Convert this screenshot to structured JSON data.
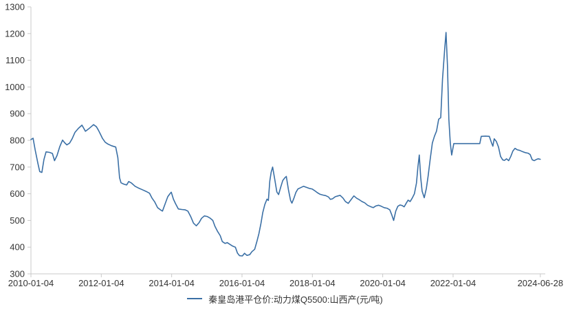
{
  "chart_data": {
    "type": "line",
    "title": "",
    "xlabel": "",
    "ylabel": "",
    "ylim": [
      300,
      1300
    ],
    "xlim": [
      2010.01,
      2024.63
    ],
    "grid": false,
    "legend_position": "bottom-center",
    "background": "#ffffff",
    "axis_color": "#c9c9c9",
    "text_color": "#333333",
    "y_ticks": [
      300,
      400,
      500,
      600,
      700,
      800,
      900,
      1000,
      1100,
      1200,
      1300
    ],
    "x_ticks": [
      {
        "label": "2010-01-04",
        "x": 2010.01
      },
      {
        "label": "2012-01-04",
        "x": 2012.01
      },
      {
        "label": "2014-01-04",
        "x": 2014.01
      },
      {
        "label": "2016-01-04",
        "x": 2016.01
      },
      {
        "label": "2018-01-04",
        "x": 2018.01
      },
      {
        "label": "2020-01-04",
        "x": 2020.01
      },
      {
        "label": "2022-01-04",
        "x": 2022.01
      },
      {
        "label": "2024-06-28",
        "x": 2024.49
      }
    ],
    "series": [
      {
        "name": "秦皇岛港平仓价:动力煤Q5500:山西产(元/吨)",
        "color": "#3a6fa5",
        "points": [
          [
            2010.01,
            803
          ],
          [
            2010.07,
            808
          ],
          [
            2010.13,
            765
          ],
          [
            2010.21,
            713
          ],
          [
            2010.26,
            683
          ],
          [
            2010.32,
            680
          ],
          [
            2010.38,
            728
          ],
          [
            2010.44,
            757
          ],
          [
            2010.54,
            755
          ],
          [
            2010.62,
            751
          ],
          [
            2010.68,
            724
          ],
          [
            2010.75,
            743
          ],
          [
            2010.83,
            777
          ],
          [
            2010.91,
            801
          ],
          [
            2010.97,
            791
          ],
          [
            2011.03,
            783
          ],
          [
            2011.11,
            790
          ],
          [
            2011.18,
            806
          ],
          [
            2011.26,
            830
          ],
          [
            2011.36,
            845
          ],
          [
            2011.46,
            857
          ],
          [
            2011.56,
            834
          ],
          [
            2011.65,
            843
          ],
          [
            2011.73,
            852
          ],
          [
            2011.79,
            859
          ],
          [
            2011.87,
            851
          ],
          [
            2011.93,
            838
          ],
          [
            2011.99,
            822
          ],
          [
            2012.04,
            808
          ],
          [
            2012.12,
            793
          ],
          [
            2012.2,
            786
          ],
          [
            2012.3,
            780
          ],
          [
            2012.42,
            775
          ],
          [
            2012.48,
            735
          ],
          [
            2012.53,
            660
          ],
          [
            2012.57,
            641
          ],
          [
            2012.65,
            636
          ],
          [
            2012.73,
            633
          ],
          [
            2012.79,
            646
          ],
          [
            2012.87,
            640
          ],
          [
            2012.97,
            628
          ],
          [
            2013.06,
            622
          ],
          [
            2013.18,
            615
          ],
          [
            2013.28,
            609
          ],
          [
            2013.38,
            602
          ],
          [
            2013.45,
            584
          ],
          [
            2013.53,
            569
          ],
          [
            2013.61,
            548
          ],
          [
            2013.69,
            540
          ],
          [
            2013.75,
            535
          ],
          [
            2013.83,
            564
          ],
          [
            2013.9,
            589
          ],
          [
            2013.96,
            600
          ],
          [
            2014.0,
            606
          ],
          [
            2014.06,
            580
          ],
          [
            2014.12,
            563
          ],
          [
            2014.2,
            543
          ],
          [
            2014.3,
            541
          ],
          [
            2014.39,
            540
          ],
          [
            2014.47,
            535
          ],
          [
            2014.55,
            515
          ],
          [
            2014.63,
            490
          ],
          [
            2014.71,
            480
          ],
          [
            2014.79,
            492
          ],
          [
            2014.86,
            508
          ],
          [
            2014.94,
            517
          ],
          [
            2015.02,
            515
          ],
          [
            2015.1,
            509
          ],
          [
            2015.18,
            500
          ],
          [
            2015.24,
            478
          ],
          [
            2015.31,
            460
          ],
          [
            2015.39,
            443
          ],
          [
            2015.45,
            421
          ],
          [
            2015.53,
            414
          ],
          [
            2015.59,
            417
          ],
          [
            2015.67,
            410
          ],
          [
            2015.74,
            404
          ],
          [
            2015.82,
            400
          ],
          [
            2015.88,
            378
          ],
          [
            2015.94,
            368
          ],
          [
            2016.02,
            367
          ],
          [
            2016.08,
            377
          ],
          [
            2016.15,
            369
          ],
          [
            2016.23,
            372
          ],
          [
            2016.29,
            383
          ],
          [
            2016.37,
            392
          ],
          [
            2016.43,
            420
          ],
          [
            2016.49,
            450
          ],
          [
            2016.55,
            490
          ],
          [
            2016.6,
            530
          ],
          [
            2016.66,
            560
          ],
          [
            2016.72,
            580
          ],
          [
            2016.76,
            575
          ],
          [
            2016.8,
            648
          ],
          [
            2016.84,
            681
          ],
          [
            2016.88,
            700
          ],
          [
            2016.94,
            654
          ],
          [
            2017.0,
            607
          ],
          [
            2017.05,
            597
          ],
          [
            2017.11,
            625
          ],
          [
            2017.17,
            650
          ],
          [
            2017.23,
            660
          ],
          [
            2017.27,
            665
          ],
          [
            2017.33,
            615
          ],
          [
            2017.39,
            575
          ],
          [
            2017.43,
            565
          ],
          [
            2017.49,
            585
          ],
          [
            2017.54,
            605
          ],
          [
            2017.6,
            618
          ],
          [
            2017.68,
            623
          ],
          [
            2017.76,
            628
          ],
          [
            2017.84,
            624
          ],
          [
            2017.92,
            620
          ],
          [
            2018.0,
            618
          ],
          [
            2018.07,
            612
          ],
          [
            2018.15,
            604
          ],
          [
            2018.23,
            598
          ],
          [
            2018.31,
            595
          ],
          [
            2018.39,
            593
          ],
          [
            2018.47,
            588
          ],
          [
            2018.52,
            579
          ],
          [
            2018.58,
            581
          ],
          [
            2018.66,
            589
          ],
          [
            2018.74,
            592
          ],
          [
            2018.8,
            594
          ],
          [
            2018.88,
            584
          ],
          [
            2018.95,
            571
          ],
          [
            2019.03,
            564
          ],
          [
            2019.11,
            578
          ],
          [
            2019.19,
            592
          ],
          [
            2019.27,
            583
          ],
          [
            2019.34,
            578
          ],
          [
            2019.42,
            571
          ],
          [
            2019.5,
            566
          ],
          [
            2019.58,
            557
          ],
          [
            2019.66,
            552
          ],
          [
            2019.74,
            548
          ],
          [
            2019.81,
            554
          ],
          [
            2019.89,
            557
          ],
          [
            2019.97,
            553
          ],
          [
            2020.05,
            548
          ],
          [
            2020.13,
            546
          ],
          [
            2020.21,
            540
          ],
          [
            2020.27,
            520
          ],
          [
            2020.32,
            500
          ],
          [
            2020.38,
            535
          ],
          [
            2020.44,
            553
          ],
          [
            2020.5,
            558
          ],
          [
            2020.56,
            556
          ],
          [
            2020.62,
            551
          ],
          [
            2020.68,
            565
          ],
          [
            2020.73,
            576
          ],
          [
            2020.79,
            571
          ],
          [
            2020.85,
            584
          ],
          [
            2020.91,
            600
          ],
          [
            2020.97,
            640
          ],
          [
            2021.01,
            700
          ],
          [
            2021.05,
            745
          ],
          [
            2021.09,
            660
          ],
          [
            2021.13,
            610
          ],
          [
            2021.19,
            585
          ],
          [
            2021.25,
            620
          ],
          [
            2021.3,
            665
          ],
          [
            2021.36,
            730
          ],
          [
            2021.42,
            790
          ],
          [
            2021.48,
            815
          ],
          [
            2021.54,
            835
          ],
          [
            2021.6,
            879
          ],
          [
            2021.66,
            885
          ],
          [
            2021.71,
            1030
          ],
          [
            2021.77,
            1140
          ],
          [
            2021.81,
            1204
          ],
          [
            2021.85,
            1080
          ],
          [
            2021.89,
            880
          ],
          [
            2021.93,
            790
          ],
          [
            2021.97,
            745
          ],
          [
            2022.03,
            788
          ],
          [
            2022.14,
            788
          ],
          [
            2022.3,
            788
          ],
          [
            2022.46,
            788
          ],
          [
            2022.61,
            788
          ],
          [
            2022.77,
            788
          ],
          [
            2022.81,
            815
          ],
          [
            2022.93,
            816
          ],
          [
            2023.04,
            815
          ],
          [
            2023.1,
            792
          ],
          [
            2023.14,
            778
          ],
          [
            2023.18,
            806
          ],
          [
            2023.24,
            796
          ],
          [
            2023.3,
            775
          ],
          [
            2023.36,
            740
          ],
          [
            2023.42,
            727
          ],
          [
            2023.47,
            725
          ],
          [
            2023.53,
            731
          ],
          [
            2023.59,
            724
          ],
          [
            2023.65,
            740
          ],
          [
            2023.71,
            760
          ],
          [
            2023.77,
            770
          ],
          [
            2023.83,
            765
          ],
          [
            2023.91,
            762
          ],
          [
            2023.98,
            758
          ],
          [
            2024.06,
            754
          ],
          [
            2024.14,
            752
          ],
          [
            2024.2,
            747
          ],
          [
            2024.26,
            727
          ],
          [
            2024.32,
            724
          ],
          [
            2024.37,
            728
          ],
          [
            2024.43,
            731
          ],
          [
            2024.49,
            729
          ]
        ]
      }
    ]
  },
  "legend": {
    "label": "秦皇岛港平仓价:动力煤Q5500:山西产(元/吨)"
  }
}
